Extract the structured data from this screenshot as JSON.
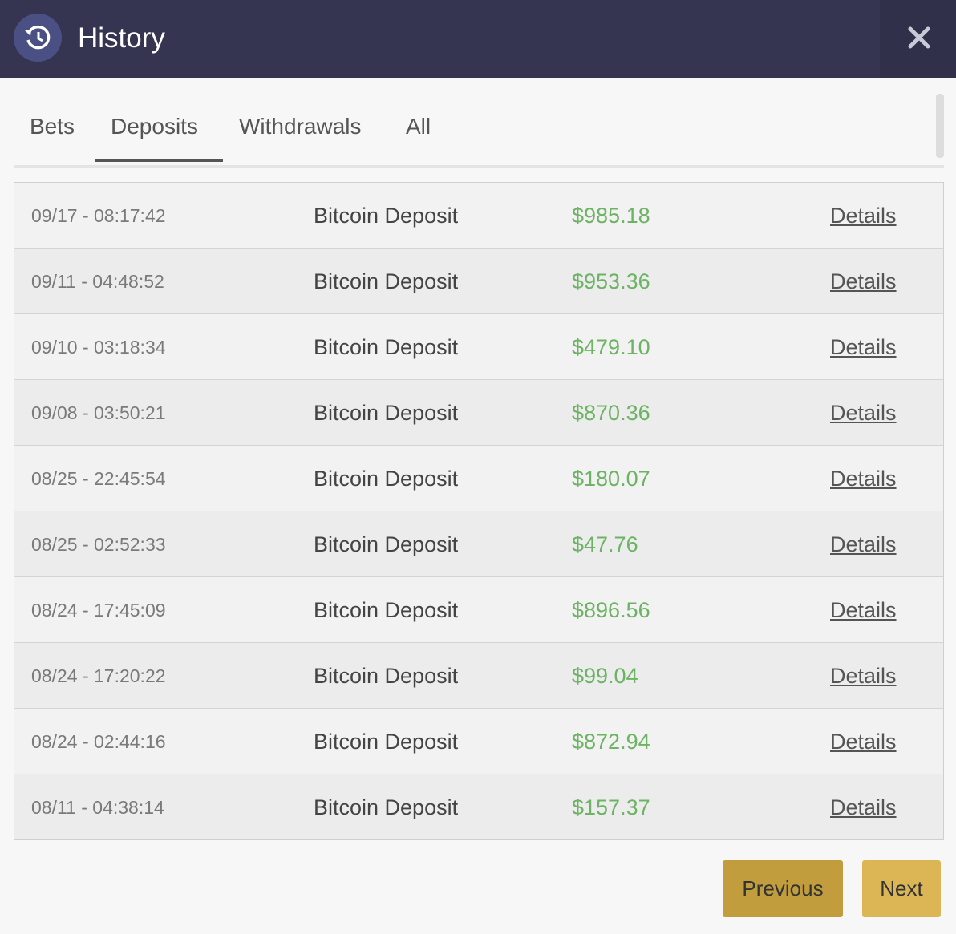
{
  "header": {
    "title": "History"
  },
  "tabs": [
    "Bets",
    "Deposits",
    "Withdrawals",
    "All"
  ],
  "active_tab": 1,
  "table": {
    "rows": [
      [
        "09/17 - 08:17:42",
        "Bitcoin Deposit",
        "$985.18",
        "Details"
      ],
      [
        "09/11 - 04:48:52",
        "Bitcoin Deposit",
        "$953.36",
        "Details"
      ],
      [
        "09/10 - 03:18:34",
        "Bitcoin Deposit",
        "$479.10",
        "Details"
      ],
      [
        "09/08 - 03:50:21",
        "Bitcoin Deposit",
        "$870.36",
        "Details"
      ],
      [
        "08/25 - 22:45:54",
        "Bitcoin Deposit",
        "$180.07",
        "Details"
      ],
      [
        "08/25 - 02:52:33",
        "Bitcoin Deposit",
        "$47.76",
        "Details"
      ],
      [
        "08/24 - 17:45:09",
        "Bitcoin Deposit",
        "$896.56",
        "Details"
      ],
      [
        "08/24 - 17:20:22",
        "Bitcoin Deposit",
        "$99.04",
        "Details"
      ],
      [
        "08/24 - 02:44:16",
        "Bitcoin Deposit",
        "$872.94",
        "Details"
      ],
      [
        "08/11 - 04:38:14",
        "Bitcoin Deposit",
        "$157.37",
        "Details"
      ]
    ]
  },
  "buttons": {
    "previous": "Previous",
    "next": "Next"
  }
}
